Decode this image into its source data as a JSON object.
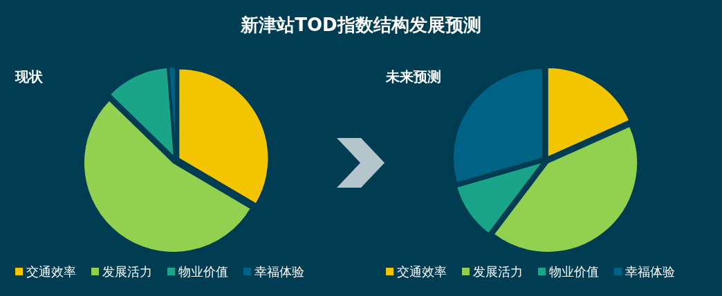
{
  "chart_data": [
    {
      "type": "pie",
      "title": "新津站TOD指数结构发展预测",
      "subtitle": "现状",
      "categories": [
        "交通效率",
        "发展活力",
        "物业价值",
        "幸福体验"
      ],
      "values": [
        33.5,
        53.8,
        11.5,
        1.2
      ],
      "colors": [
        "#f2c500",
        "#92d050",
        "#1aa58a",
        "#006385"
      ],
      "legend": "bottom"
    },
    {
      "type": "pie",
      "subtitle": "未来预测",
      "categories": [
        "交通效率",
        "发展活力",
        "物业价值",
        "幸福体验"
      ],
      "values": [
        18.3,
        42,
        10.2,
        29.5
      ],
      "colors": [
        "#f2c500",
        "#92d050",
        "#1aa58a",
        "#006385"
      ],
      "legend": "bottom"
    }
  ]
}
